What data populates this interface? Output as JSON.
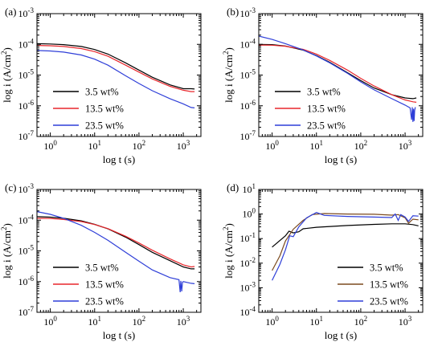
{
  "chart_data": [
    {
      "type": "line",
      "panel_label": "(a)",
      "xlabel": "log t (s)",
      "ylabel_parts": [
        "log i (A/cm",
        "2",
        ")"
      ],
      "xscale": "log",
      "yscale": "log",
      "xlim": [
        0.5,
        2500
      ],
      "ylim": [
        1e-07,
        0.001
      ],
      "x_ticks": [
        {
          "v": 1,
          "base": "10",
          "exp": "0"
        },
        {
          "v": 10,
          "base": "10",
          "exp": "1"
        },
        {
          "v": 100,
          "base": "10",
          "exp": "2"
        },
        {
          "v": 1000,
          "base": "10",
          "exp": "3"
        }
      ],
      "y_ticks": [
        {
          "v": 1e-07,
          "base": "10",
          "exp": "-7"
        },
        {
          "v": 1e-06,
          "base": "10",
          "exp": "-6"
        },
        {
          "v": 1e-05,
          "base": "10",
          "exp": "-5"
        },
        {
          "v": 0.0001,
          "base": "10",
          "exp": "-4"
        },
        {
          "v": 0.001,
          "base": "10",
          "exp": "-3"
        }
      ],
      "legend_position": "lower-left",
      "series": [
        {
          "name": "3.5 wt%",
          "color": "#000000",
          "points": [
            [
              0.5,
              0.000105
            ],
            [
              1,
              0.000103
            ],
            [
              2,
              9.8e-05
            ],
            [
              5,
              8.5e-05
            ],
            [
              10,
              6.8e-05
            ],
            [
              20,
              4.8e-05
            ],
            [
              50,
              2.5e-05
            ],
            [
              100,
              1.45e-05
            ],
            [
              200,
              8.5e-06
            ],
            [
              500,
              4.8e-06
            ],
            [
              1000,
              3.6e-06
            ],
            [
              1500,
              3.6e-06
            ],
            [
              1800,
              3.5e-06
            ]
          ]
        },
        {
          "name": "13.5 wt%",
          "color": "#e8262b",
          "points": [
            [
              0.5,
              9.2e-05
            ],
            [
              1,
              9e-05
            ],
            [
              2,
              8.5e-05
            ],
            [
              5,
              7.3e-05
            ],
            [
              10,
              5.8e-05
            ],
            [
              20,
              4.1e-05
            ],
            [
              50,
              2.1e-05
            ],
            [
              100,
              1.25e-05
            ],
            [
              200,
              7.5e-06
            ],
            [
              500,
              4.3e-06
            ],
            [
              1000,
              3.2e-06
            ],
            [
              1500,
              2.9e-06
            ],
            [
              1800,
              2.9e-06
            ]
          ]
        },
        {
          "name": "23.5 wt%",
          "color": "#2f3fd8",
          "points": [
            [
              0.5,
              6.3e-05
            ],
            [
              1,
              6.1e-05
            ],
            [
              2,
              5.6e-05
            ],
            [
              5,
              4.5e-05
            ],
            [
              10,
              3.3e-05
            ],
            [
              20,
              2.1e-05
            ],
            [
              50,
              9.5e-06
            ],
            [
              100,
              5.3e-06
            ],
            [
              200,
              3.1e-06
            ],
            [
              500,
              1.7e-06
            ],
            [
              1000,
              1.15e-06
            ],
            [
              1500,
              8.8e-07
            ],
            [
              1800,
              8.5e-07
            ]
          ]
        }
      ]
    },
    {
      "type": "line",
      "panel_label": "(b)",
      "xlabel": "log t (s)",
      "ylabel_parts": [
        "log i (A/cm",
        "2",
        ")"
      ],
      "xscale": "log",
      "yscale": "log",
      "xlim": [
        0.5,
        2500
      ],
      "ylim": [
        1e-07,
        0.001
      ],
      "x_ticks": [
        {
          "v": 1,
          "base": "10",
          "exp": "0"
        },
        {
          "v": 10,
          "base": "10",
          "exp": "1"
        },
        {
          "v": 100,
          "base": "10",
          "exp": "2"
        },
        {
          "v": 1000,
          "base": "10",
          "exp": "3"
        }
      ],
      "y_ticks": [
        {
          "v": 1e-07,
          "base": "10",
          "exp": "-7"
        },
        {
          "v": 1e-06,
          "base": "10",
          "exp": "-6"
        },
        {
          "v": 1e-05,
          "base": "10",
          "exp": "-5"
        },
        {
          "v": 0.0001,
          "base": "10",
          "exp": "-4"
        },
        {
          "v": 0.001,
          "base": "10",
          "exp": "-3"
        }
      ],
      "legend_position": "lower-left",
      "series": [
        {
          "name": "3.5 wt%",
          "color": "#000000",
          "points": [
            [
              0.5,
              0.0001
            ],
            [
              1,
              9.8e-05
            ],
            [
              2,
              8.8e-05
            ],
            [
              5,
              6.5e-05
            ],
            [
              10,
              4.3e-05
            ],
            [
              20,
              2.6e-05
            ],
            [
              50,
              1.2e-05
            ],
            [
              100,
              6.6e-06
            ],
            [
              200,
              3.8e-06
            ],
            [
              500,
              2.3e-06
            ],
            [
              1000,
              1.8e-06
            ],
            [
              1500,
              1.7e-06
            ],
            [
              1800,
              1.8e-06
            ]
          ]
        },
        {
          "name": "13.5 wt%",
          "color": "#e8262b",
          "points": [
            [
              0.5,
              9.5e-05
            ],
            [
              1,
              9.4e-05
            ],
            [
              2,
              8.7e-05
            ],
            [
              5,
              6.9e-05
            ],
            [
              10,
              4.8e-05
            ],
            [
              20,
              3e-05
            ],
            [
              50,
              1.45e-05
            ],
            [
              100,
              7.8e-06
            ],
            [
              200,
              4.4e-06
            ],
            [
              500,
              2.3e-06
            ],
            [
              1000,
              1.55e-06
            ],
            [
              1500,
              1.35e-06
            ],
            [
              1800,
              1.3e-06
            ]
          ]
        },
        {
          "name": "23.5 wt%",
          "color": "#2f3fd8",
          "points": [
            [
              0.5,
              0.000185
            ],
            [
              1,
              0.000145
            ],
            [
              2,
              0.000105
            ],
            [
              5,
              6.6e-05
            ],
            [
              10,
              4.2e-05
            ],
            [
              20,
              2.5e-05
            ],
            [
              50,
              1.15e-05
            ],
            [
              100,
              6e-06
            ],
            [
              200,
              3.3e-06
            ],
            [
              500,
              1.7e-06
            ],
            [
              1000,
              1.05e-06
            ],
            [
              1300,
              8.5e-07
            ],
            [
              1400,
              3.5e-07
            ],
            [
              1450,
              9e-07
            ],
            [
              1500,
              3e-07
            ],
            [
              1550,
              8e-07
            ],
            [
              1600,
              3.2e-07
            ],
            [
              1650,
              7e-07
            ],
            [
              1700,
              9e-07
            ]
          ]
        }
      ]
    },
    {
      "type": "line",
      "panel_label": "(c)",
      "xlabel": "log t (s)",
      "ylabel_parts": [
        "log i (A/cm",
        "2",
        ")"
      ],
      "xscale": "log",
      "yscale": "log",
      "xlim": [
        0.5,
        2500
      ],
      "ylim": [
        1e-07,
        0.001
      ],
      "x_ticks": [
        {
          "v": 1,
          "base": "10",
          "exp": "0"
        },
        {
          "v": 10,
          "base": "10",
          "exp": "1"
        },
        {
          "v": 100,
          "base": "10",
          "exp": "2"
        },
        {
          "v": 1000,
          "base": "10",
          "exp": "3"
        }
      ],
      "y_ticks": [
        {
          "v": 1e-07,
          "base": "10",
          "exp": "-7"
        },
        {
          "v": 1e-06,
          "base": "10",
          "exp": "-6"
        },
        {
          "v": 1e-05,
          "base": "10",
          "exp": "-5"
        },
        {
          "v": 0.0001,
          "base": "10",
          "exp": "-4"
        },
        {
          "v": 0.001,
          "base": "10",
          "exp": "-3"
        }
      ],
      "legend_position": "lower-left",
      "series": [
        {
          "name": "3.5 wt%",
          "color": "#000000",
          "points": [
            [
              0.5,
              0.00013
            ],
            [
              1,
              0.000125
            ],
            [
              2,
              0.000115
            ],
            [
              5,
              9.5e-05
            ],
            [
              10,
              7.3e-05
            ],
            [
              20,
              5.2e-05
            ],
            [
              50,
              2.8e-05
            ],
            [
              100,
              1.6e-05
            ],
            [
              200,
              9e-06
            ],
            [
              500,
              4.8e-06
            ],
            [
              1000,
              3e-06
            ],
            [
              1500,
              2.6e-06
            ],
            [
              1800,
              2.6e-06
            ]
          ]
        },
        {
          "name": "13.5 wt%",
          "color": "#e8262b",
          "points": [
            [
              0.5,
              0.000115
            ],
            [
              1,
              0.000113
            ],
            [
              2,
              0.000105
            ],
            [
              5,
              9e-05
            ],
            [
              10,
              7.2e-05
            ],
            [
              20,
              5.3e-05
            ],
            [
              50,
              3e-05
            ],
            [
              100,
              1.8e-05
            ],
            [
              200,
              1.05e-05
            ],
            [
              500,
              5.5e-06
            ],
            [
              1000,
              3.5e-06
            ],
            [
              1500,
              3e-06
            ],
            [
              1800,
              3.1e-06
            ]
          ]
        },
        {
          "name": "23.5 wt%",
          "color": "#2f3fd8",
          "points": [
            [
              0.5,
              0.00019
            ],
            [
              1,
              0.000155
            ],
            [
              2,
              0.000115
            ],
            [
              5,
              6.8e-05
            ],
            [
              10,
              4e-05
            ],
            [
              20,
              2.2e-05
            ],
            [
              50,
              9e-06
            ],
            [
              100,
              4.6e-06
            ],
            [
              200,
              2.4e-06
            ],
            [
              500,
              1.35e-06
            ],
            [
              800,
              1.15e-06
            ],
            [
              850,
              4.5e-07
            ],
            [
              880,
              1.05e-06
            ],
            [
              920,
              4.8e-07
            ],
            [
              960,
              9.5e-07
            ],
            [
              1000,
              1e-06
            ],
            [
              1500,
              8.8e-07
            ],
            [
              1800,
              8.5e-07
            ]
          ]
        }
      ]
    },
    {
      "type": "line",
      "panel_label": "(d)",
      "xlabel": "log t (s)",
      "ylabel_parts": [
        "log i (A/cm",
        "2",
        ")"
      ],
      "xscale": "log",
      "yscale": "log",
      "xlim": [
        0.5,
        2500
      ],
      "ylim": [
        0.0001,
        10
      ],
      "x_ticks": [
        {
          "v": 1,
          "base": "10",
          "exp": "0"
        },
        {
          "v": 10,
          "base": "10",
          "exp": "1"
        },
        {
          "v": 100,
          "base": "10",
          "exp": "2"
        },
        {
          "v": 1000,
          "base": "10",
          "exp": "3"
        }
      ],
      "y_ticks": [
        {
          "v": 0.0001,
          "base": "10",
          "exp": "-4"
        },
        {
          "v": 0.001,
          "base": "10",
          "exp": "-3"
        },
        {
          "v": 0.01,
          "base": "10",
          "exp": "-2"
        },
        {
          "v": 0.1,
          "base": "10",
          "exp": "-1"
        },
        {
          "v": 1,
          "base": "10",
          "exp": "0"
        },
        {
          "v": 10,
          "base": "10",
          "exp": "1"
        }
      ],
      "legend_position": "lower-right",
      "series": [
        {
          "name": "3.5 wt%",
          "color": "#000000",
          "points": [
            [
              1,
              0.045
            ],
            [
              2,
              0.13
            ],
            [
              2.4,
              0.2
            ],
            [
              3,
              0.17
            ],
            [
              4,
              0.19
            ],
            [
              5,
              0.25
            ],
            [
              10,
              0.29
            ],
            [
              50,
              0.34
            ],
            [
              200,
              0.38
            ],
            [
              500,
              0.4
            ],
            [
              1000,
              0.4
            ],
            [
              1500,
              0.37
            ],
            [
              2000,
              0.33
            ]
          ]
        },
        {
          "name": "13.5 wt%",
          "color": "#7b4a1e",
          "points": [
            [
              1,
              0.005
            ],
            [
              1.5,
              0.02
            ],
            [
              2,
              0.08
            ],
            [
              3,
              0.24
            ],
            [
              5,
              0.55
            ],
            [
              8,
              0.95
            ],
            [
              15,
              1.05
            ],
            [
              50,
              1.0
            ],
            [
              200,
              0.98
            ],
            [
              500,
              0.9
            ],
            [
              700,
              0.95
            ],
            [
              1000,
              0.7
            ],
            [
              1200,
              0.42
            ],
            [
              1500,
              0.62
            ],
            [
              2000,
              0.58
            ]
          ]
        },
        {
          "name": "23.5 wt%",
          "color": "#2f3fd8",
          "points": [
            [
              1,
              0.002
            ],
            [
              1.5,
              0.009
            ],
            [
              2,
              0.035
            ],
            [
              2.5,
              0.13
            ],
            [
              3,
              0.12
            ],
            [
              4,
              0.3
            ],
            [
              6,
              0.7
            ],
            [
              10,
              1.15
            ],
            [
              15,
              0.88
            ],
            [
              50,
              0.8
            ],
            [
              200,
              0.75
            ],
            [
              500,
              0.72
            ],
            [
              600,
              1.0
            ],
            [
              700,
              0.55
            ],
            [
              800,
              0.95
            ],
            [
              1000,
              0.75
            ],
            [
              1200,
              0.5
            ],
            [
              1500,
              0.85
            ],
            [
              2000,
              0.82
            ]
          ]
        }
      ]
    }
  ]
}
